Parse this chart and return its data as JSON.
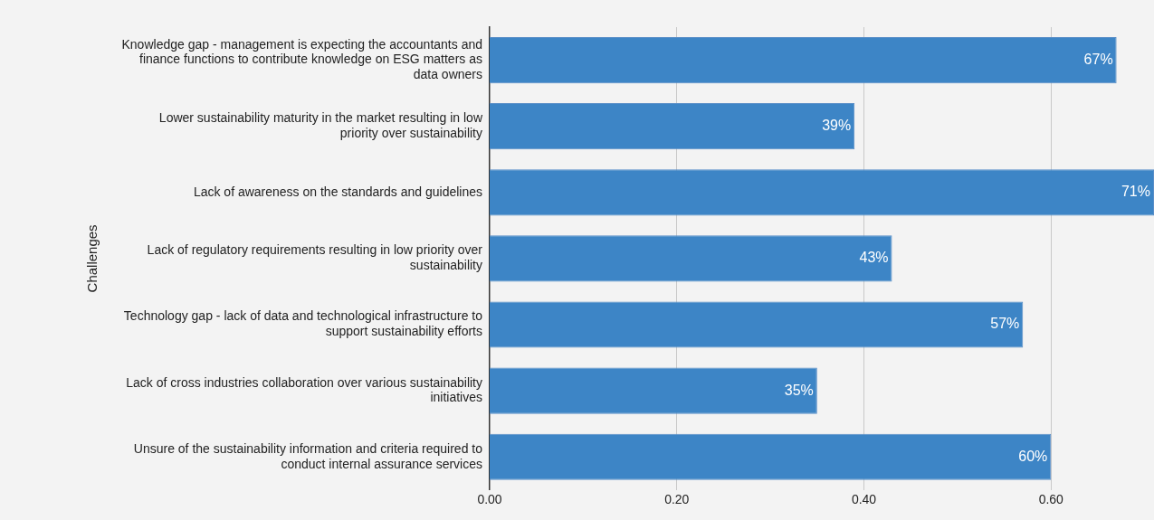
{
  "chart_data": {
    "type": "bar",
    "orientation": "horizontal",
    "ylabel": "Challenges",
    "categories": [
      "Knowledge gap - management is expecting the accountants and finance functions to contribute knowledge on ESG matters as data owners",
      "Lower sustainability maturity in the market resulting in low priority over sustainability",
      "Lack of awareness on the standards and guidelines",
      "Lack of regulatory requirements resulting in low priority over sustainability",
      "Technology gap - lack of data and technological infrastructure to support sustainability efforts",
      "Lack of cross industries collaboration over various sustainability initiatives",
      "Unsure of the sustainability information and criteria required to conduct internal assurance services"
    ],
    "values": [
      0.67,
      0.39,
      0.71,
      0.43,
      0.57,
      0.35,
      0.6
    ],
    "value_labels": [
      "67%",
      "39%",
      "71%",
      "43%",
      "57%",
      "35%",
      "60%"
    ],
    "color": "#3d85c6",
    "xlim": [
      0,
      0.71
    ],
    "xticks": [
      {
        "value": 0,
        "label": "0.00"
      },
      {
        "value": 0.2,
        "label": "0.20"
      },
      {
        "value": 0.4,
        "label": "0.40"
      },
      {
        "value": 0.6,
        "label": "0.60"
      }
    ],
    "grid": "x",
    "legend": false
  }
}
